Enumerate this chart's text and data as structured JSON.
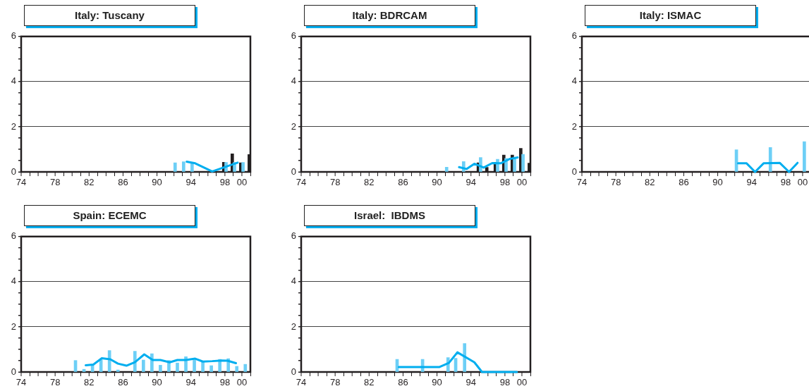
{
  "chart_data": [
    {
      "type": "bar",
      "title": "Italy: Tuscany",
      "xlim": [
        1974,
        2001
      ],
      "ylim": [
        0,
        6
      ],
      "grid": "y",
      "marker": "none",
      "xticks": [
        {
          "value": 1974,
          "label": "74"
        },
        {
          "value": 1976,
          "label": null
        },
        {
          "value": 1978,
          "label": "78"
        },
        {
          "value": 1980,
          "label": null
        },
        {
          "value": 1982,
          "label": "82"
        },
        {
          "value": 1984,
          "label": null
        },
        {
          "value": 1986,
          "label": "86"
        },
        {
          "value": 1988,
          "label": null
        },
        {
          "value": 1990,
          "label": "90"
        },
        {
          "value": 1992,
          "label": null
        },
        {
          "value": 1994,
          "label": "94"
        },
        {
          "value": 1996,
          "label": null
        },
        {
          "value": 1998,
          "label": "98"
        },
        {
          "value": 2000,
          "label": "00"
        }
      ],
      "yticks": [
        0,
        {
          "value": 0.5,
          "label": null
        },
        {
          "value": 1,
          "label": null
        },
        {
          "value": 1.5,
          "label": null
        },
        2,
        {
          "value": 2.5,
          "label": null
        },
        {
          "value": 3,
          "label": null
        },
        {
          "value": 3.5,
          "label": null
        },
        4,
        {
          "value": 4.5,
          "label": null
        },
        {
          "value": 5,
          "label": null
        },
        {
          "value": 5.5,
          "label": null
        },
        6
      ],
      "series": [
        {
          "type": "bar",
          "color": "#6dcff6",
          "x": [
            1992.3,
            1993.3,
            1994.3,
            1998.3,
            1999.3,
            2000.3
          ],
          "values": [
            0.4,
            0.45,
            0.43,
            0.42,
            0.42,
            0.42
          ]
        },
        {
          "type": "bar",
          "color": "#231f20",
          "x": [
            1997.7,
            1998.7,
            1999.7,
            2000.7
          ],
          "values": [
            0.43,
            0.8,
            0.4,
            0.77
          ]
        },
        {
          "type": "line",
          "color": "#00aeef",
          "x": [
            1993.5,
            1994.5,
            1996.5,
            1999.5
          ],
          "values": [
            0.45,
            0.38,
            0.02,
            0.41
          ]
        }
      ]
    },
    {
      "type": "bar",
      "title": "Italy: BDRCAM",
      "xlim": [
        1974,
        2001
      ],
      "ylim": [
        0,
        6
      ],
      "grid": "y",
      "marker": "none",
      "xticks": [
        {
          "value": 1974,
          "label": "74"
        },
        {
          "value": 1976,
          "label": null
        },
        {
          "value": 1978,
          "label": "78"
        },
        {
          "value": 1980,
          "label": null
        },
        {
          "value": 1982,
          "label": "82"
        },
        {
          "value": 1984,
          "label": null
        },
        {
          "value": 1986,
          "label": "86"
        },
        {
          "value": 1988,
          "label": null
        },
        {
          "value": 1990,
          "label": "90"
        },
        {
          "value": 1992,
          "label": null
        },
        {
          "value": 1994,
          "label": "94"
        },
        {
          "value": 1996,
          "label": null
        },
        {
          "value": 1998,
          "label": "98"
        },
        {
          "value": 2000,
          "label": "00"
        }
      ],
      "yticks": [
        0,
        {
          "value": 0.5,
          "label": null
        },
        {
          "value": 1,
          "label": null
        },
        {
          "value": 1.5,
          "label": null
        },
        2,
        {
          "value": 2.5,
          "label": null
        },
        {
          "value": 3,
          "label": null
        },
        {
          "value": 3.5,
          "label": null
        },
        4,
        {
          "value": 4.5,
          "label": null
        },
        {
          "value": 5,
          "label": null
        },
        {
          "value": 5.5,
          "label": null
        },
        6
      ],
      "series": [
        {
          "type": "bar",
          "color": "#6dcff6",
          "x": [
            1991.3,
            1993.3,
            1995.3,
            1997.3,
            1998.3,
            1999.3,
            2000.3
          ],
          "values": [
            0.21,
            0.46,
            0.64,
            0.56,
            0.6,
            0.6,
            0.78
          ]
        },
        {
          "type": "bar",
          "color": "#231f20",
          "x": [
            1994.7,
            1995.7,
            1996.7,
            1997.7,
            1998.7,
            1999.7,
            2000.7
          ],
          "values": [
            0.4,
            0.2,
            0.43,
            0.75,
            0.75,
            1.04,
            0.39
          ]
        },
        {
          "type": "line",
          "color": "#00aeef",
          "x": [
            1992.6,
            1993.5,
            1994.4,
            1995.5,
            1996.5,
            1997.5,
            1998.6,
            1999.5
          ],
          "values": [
            0.21,
            0.13,
            0.36,
            0.19,
            0.39,
            0.38,
            0.58,
            0.64
          ]
        }
      ]
    },
    {
      "type": "bar",
      "title": "Italy: ISMAC",
      "xlim": [
        1974,
        2001
      ],
      "ylim": [
        0,
        6
      ],
      "grid": "y",
      "marker": "none",
      "xticks": [
        {
          "value": 1974,
          "label": "74"
        },
        {
          "value": 1976,
          "label": null
        },
        {
          "value": 1978,
          "label": "78"
        },
        {
          "value": 1980,
          "label": null
        },
        {
          "value": 1982,
          "label": "82"
        },
        {
          "value": 1984,
          "label": null
        },
        {
          "value": 1986,
          "label": "86"
        },
        {
          "value": 1988,
          "label": null
        },
        {
          "value": 1990,
          "label": "90"
        },
        {
          "value": 1992,
          "label": null
        },
        {
          "value": 1994,
          "label": "94"
        },
        {
          "value": 1996,
          "label": null
        },
        {
          "value": 1998,
          "label": "98"
        },
        {
          "value": 2000,
          "label": "00"
        }
      ],
      "yticks": [
        0,
        {
          "value": 0.5,
          "label": null
        },
        {
          "value": 1,
          "label": null
        },
        {
          "value": 1.5,
          "label": null
        },
        2,
        {
          "value": 2.5,
          "label": null
        },
        {
          "value": 3,
          "label": null
        },
        {
          "value": 3.5,
          "label": null
        },
        4,
        {
          "value": 4.5,
          "label": null
        },
        {
          "value": 5,
          "label": null
        },
        {
          "value": 5.5,
          "label": null
        },
        6
      ],
      "series": [
        {
          "type": "bar",
          "color": "#6dcff6",
          "x": [
            1992.2,
            1996.2,
            2000.2
          ],
          "values": [
            0.98,
            1.08,
            1.34
          ]
        },
        {
          "type": "line",
          "color": "#00aeef",
          "x": [
            1992.4,
            1993.4,
            1994.4,
            1995.4,
            1997.3,
            1998.4,
            1999.4
          ],
          "values": [
            0.38,
            0.38,
            0.0,
            0.38,
            0.4,
            0.0,
            0.4
          ]
        }
      ]
    },
    {
      "type": "bar",
      "title": "Spain: ECEMC",
      "xlim": [
        1974,
        2001
      ],
      "ylim": [
        0,
        6
      ],
      "grid": "y",
      "marker": "none",
      "xticks": [
        {
          "value": 1974,
          "label": "74"
        },
        {
          "value": 1976,
          "label": null
        },
        {
          "value": 1978,
          "label": "78"
        },
        {
          "value": 1980,
          "label": null
        },
        {
          "value": 1982,
          "label": "82"
        },
        {
          "value": 1984,
          "label": null
        },
        {
          "value": 1986,
          "label": "86"
        },
        {
          "value": 1988,
          "label": null
        },
        {
          "value": 1990,
          "label": "90"
        },
        {
          "value": 1992,
          "label": null
        },
        {
          "value": 1994,
          "label": "94"
        },
        {
          "value": 1996,
          "label": null
        },
        {
          "value": 1998,
          "label": "98"
        },
        {
          "value": 2000,
          "label": "00"
        }
      ],
      "yticks": [
        0,
        {
          "value": 0.5,
          "label": null
        },
        {
          "value": 1,
          "label": null
        },
        {
          "value": 1.5,
          "label": null
        },
        2,
        {
          "value": 2.5,
          "label": null
        },
        {
          "value": 3,
          "label": null
        },
        {
          "value": 3.5,
          "label": null
        },
        4,
        {
          "value": 4.5,
          "label": null
        },
        {
          "value": 5,
          "label": null
        },
        {
          "value": 5.5,
          "label": null
        },
        6
      ],
      "series": [
        {
          "type": "bar",
          "color": "#6dcff6",
          "x": [
            1980.4,
            1981.4,
            1982.4,
            1983.4,
            1984.4,
            1985.4,
            1987.4,
            1988.4,
            1989.4,
            1990.4,
            1991.4,
            1992.4,
            1993.4,
            1994.4,
            1995.4,
            1996.4,
            1997.4,
            1998.4,
            1999.4,
            2000.4
          ],
          "values": [
            0.51,
            0.12,
            0.3,
            0.54,
            0.95,
            0.09,
            0.92,
            0.53,
            0.81,
            0.3,
            0.51,
            0.4,
            0.68,
            0.54,
            0.46,
            0.28,
            0.56,
            0.59,
            0.25,
            0.34
          ]
        },
        {
          "type": "line",
          "color": "#00aeef",
          "x": [
            1981.6,
            1982.5,
            1983.5,
            1984.5,
            1985.4,
            1986.4,
            1987.4,
            1988.5,
            1989.5,
            1990.4,
            1991.5,
            1992.4,
            1993.4,
            1994.5,
            1995.4,
            1996.5,
            1997.6,
            1998.3,
            1999.3
          ],
          "values": [
            0.3,
            0.33,
            0.61,
            0.56,
            0.37,
            0.28,
            0.43,
            0.78,
            0.53,
            0.53,
            0.43,
            0.53,
            0.53,
            0.59,
            0.46,
            0.48,
            0.51,
            0.5,
            0.39
          ]
        }
      ]
    },
    {
      "type": "bar",
      "title": "Israel:  IBDMS",
      "xlim": [
        1974,
        2001
      ],
      "ylim": [
        0,
        6
      ],
      "grid": "y",
      "marker": "none",
      "xticks": [
        {
          "value": 1974,
          "label": "74"
        },
        {
          "value": 1976,
          "label": null
        },
        {
          "value": 1978,
          "label": "78"
        },
        {
          "value": 1980,
          "label": null
        },
        {
          "value": 1982,
          "label": "82"
        },
        {
          "value": 1984,
          "label": null
        },
        {
          "value": 1986,
          "label": "86"
        },
        {
          "value": 1988,
          "label": null
        },
        {
          "value": 1990,
          "label": "90"
        },
        {
          "value": 1992,
          "label": null
        },
        {
          "value": 1994,
          "label": "94"
        },
        {
          "value": 1996,
          "label": null
        },
        {
          "value": 1998,
          "label": "98"
        },
        {
          "value": 2000,
          "label": "00"
        }
      ],
      "yticks": [
        0,
        {
          "value": 0.5,
          "label": null
        },
        {
          "value": 1,
          "label": null
        },
        {
          "value": 1.5,
          "label": null
        },
        2,
        {
          "value": 2.5,
          "label": null
        },
        {
          "value": 3,
          "label": null
        },
        {
          "value": 3.5,
          "label": null
        },
        4,
        {
          "value": 4.5,
          "label": null
        },
        {
          "value": 5,
          "label": null
        },
        {
          "value": 5.5,
          "label": null
        },
        6
      ],
      "series": [
        {
          "type": "bar",
          "color": "#6dcff6",
          "x": [
            1985.3,
            1988.3,
            1991.3,
            1992.2,
            1993.25
          ],
          "values": [
            0.56,
            0.56,
            0.64,
            0.61,
            1.26
          ]
        },
        {
          "type": "line",
          "color": "#00aeef",
          "x": [
            1985.5,
            1990.3,
            1991.4,
            1992.4,
            1994.4,
            1995.3,
            1999.4
          ],
          "values": [
            0.22,
            0.22,
            0.4,
            0.87,
            0.43,
            0.0,
            0.0
          ]
        }
      ]
    }
  ]
}
